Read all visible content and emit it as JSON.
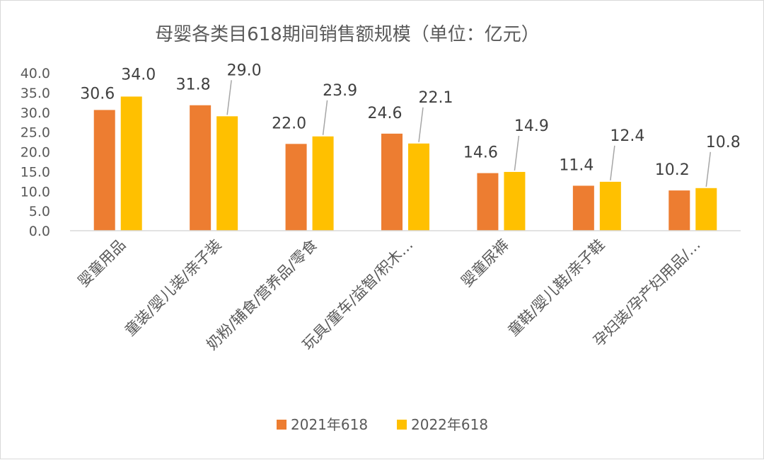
{
  "chart_data": {
    "type": "bar",
    "title": "母婴各类目618期间销售额规模（单位：亿元）",
    "categories": [
      "婴童用品",
      "童装/婴儿装/亲子装",
      "奶粉/辅食/营养品/零食",
      "玩具/童车/益智/积木…",
      "婴童尿裤",
      "童鞋/婴儿鞋/亲子鞋",
      "孕妇装/孕产妇用品/…"
    ],
    "series": [
      {
        "name": "2021年618",
        "color": "#ED7D31",
        "values": [
          30.6,
          31.8,
          22.0,
          24.6,
          14.6,
          11.4,
          10.2
        ]
      },
      {
        "name": "2022年618",
        "color": "#FFC000",
        "values": [
          34.0,
          29.0,
          23.9,
          22.1,
          14.9,
          12.4,
          10.8
        ]
      }
    ],
    "yticks": [
      "0.0",
      "5.0",
      "10.0",
      "15.0",
      "20.0",
      "25.0",
      "30.0",
      "35.0",
      "40.0"
    ],
    "ylim": [
      0,
      40
    ],
    "grid": false,
    "legend_position": "bottom"
  }
}
